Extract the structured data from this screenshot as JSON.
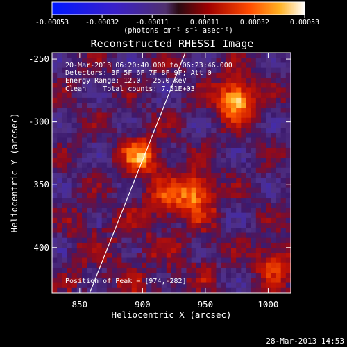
{
  "chart_data": {
    "type": "heatmap",
    "title": "Reconstructed RHESSI Image",
    "xlabel": "Heliocentric X (arcsec)",
    "ylabel": "Heliocentric Y (arcsec)",
    "xlim": [
      828,
      1018
    ],
    "ylim": [
      -436,
      -245
    ],
    "xticks": [
      850,
      900,
      950,
      1000
    ],
    "yticks": [
      -250,
      -300,
      -350,
      -400
    ],
    "colorbar": {
      "label": "(photons cm⁻² s⁻¹ asec⁻²)",
      "range": [
        -0.00053,
        0.00053
      ],
      "ticks": [
        "-0.00053",
        "-0.00032",
        "-0.00011",
        "0.00011",
        "0.00032",
        "0.00053"
      ]
    },
    "annotations": [
      "20-Mar-2013 06:20:40.000 to 06:23:46.000",
      "Detectors: 3F 5F 6F 7F 8F 9F; Att 0",
      "Energy Range: 12.0 - 25.0 keV",
      "Clean    Total counts: 7.51E+03",
      "Position of Peak = [974,-282]"
    ],
    "peak": [
      974,
      -282
    ],
    "sources": [
      {
        "x": 974,
        "y": -282,
        "value": 1.0
      },
      {
        "x": 899,
        "y": -327,
        "value": 0.75
      },
      {
        "x": 942,
        "y": -356,
        "value": 0.85
      },
      {
        "x": 917,
        "y": -362,
        "value": 0.45
      },
      {
        "x": 1006,
        "y": -412,
        "value": 0.55
      }
    ],
    "limb_line": [
      [
        858,
        -436
      ],
      [
        934,
        -245
      ]
    ]
  },
  "footer": {
    "timestamp": "28-Mar-2013 14:53"
  }
}
